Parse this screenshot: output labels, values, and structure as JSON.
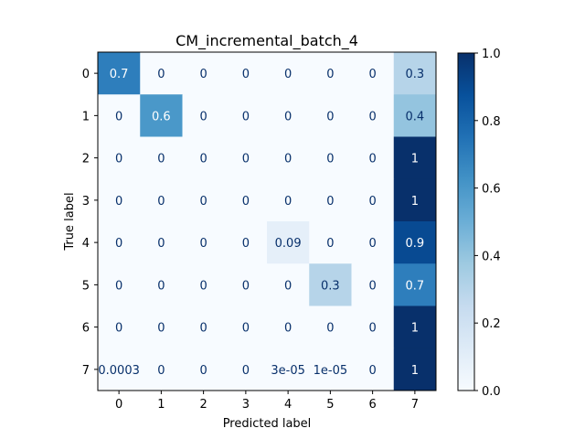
{
  "chart_data": {
    "type": "heatmap",
    "title": "CM_incremental_batch_4",
    "xlabel": "Predicted label",
    "ylabel": "True label",
    "x_categories": [
      "0",
      "1",
      "2",
      "3",
      "4",
      "5",
      "6",
      "7"
    ],
    "y_categories": [
      "0",
      "1",
      "2",
      "3",
      "4",
      "5",
      "6",
      "7"
    ],
    "values": [
      [
        0.7,
        0,
        0,
        0,
        0,
        0,
        0,
        0.3
      ],
      [
        0,
        0.6,
        0,
        0,
        0,
        0,
        0,
        0.4
      ],
      [
        0,
        0,
        0,
        0,
        0,
        0,
        0,
        1
      ],
      [
        0,
        0,
        0,
        0,
        0,
        0,
        0,
        1
      ],
      [
        0,
        0,
        0,
        0,
        0.09,
        0,
        0,
        0.9
      ],
      [
        0,
        0,
        0,
        0,
        0,
        0.3,
        0,
        0.7
      ],
      [
        0,
        0,
        0,
        0,
        0,
        0,
        0,
        1
      ],
      [
        0.0003,
        0,
        0,
        0,
        3e-05,
        1e-05,
        0,
        1
      ]
    ],
    "cell_labels": [
      [
        "0.7",
        "0",
        "0",
        "0",
        "0",
        "0",
        "0",
        "0.3"
      ],
      [
        "0",
        "0.6",
        "0",
        "0",
        "0",
        "0",
        "0",
        "0.4"
      ],
      [
        "0",
        "0",
        "0",
        "0",
        "0",
        "0",
        "0",
        "1"
      ],
      [
        "0",
        "0",
        "0",
        "0",
        "0",
        "0",
        "0",
        "1"
      ],
      [
        "0",
        "0",
        "0",
        "0",
        "0.09",
        "0",
        "0",
        "0.9"
      ],
      [
        "0",
        "0",
        "0",
        "0",
        "0",
        "0.3",
        "0",
        "0.7"
      ],
      [
        "0",
        "0",
        "0",
        "0",
        "0",
        "0",
        "0",
        "1"
      ],
      [
        "0.0003",
        "0",
        "0",
        "0",
        "3e-05",
        "1e-05",
        "0",
        "1"
      ]
    ],
    "colormap": "Blues",
    "color_range": [
      0,
      1
    ],
    "colorbar_ticks": [
      "0.0",
      "0.2",
      "0.4",
      "0.6",
      "0.8",
      "1.0"
    ],
    "grid": false
  }
}
